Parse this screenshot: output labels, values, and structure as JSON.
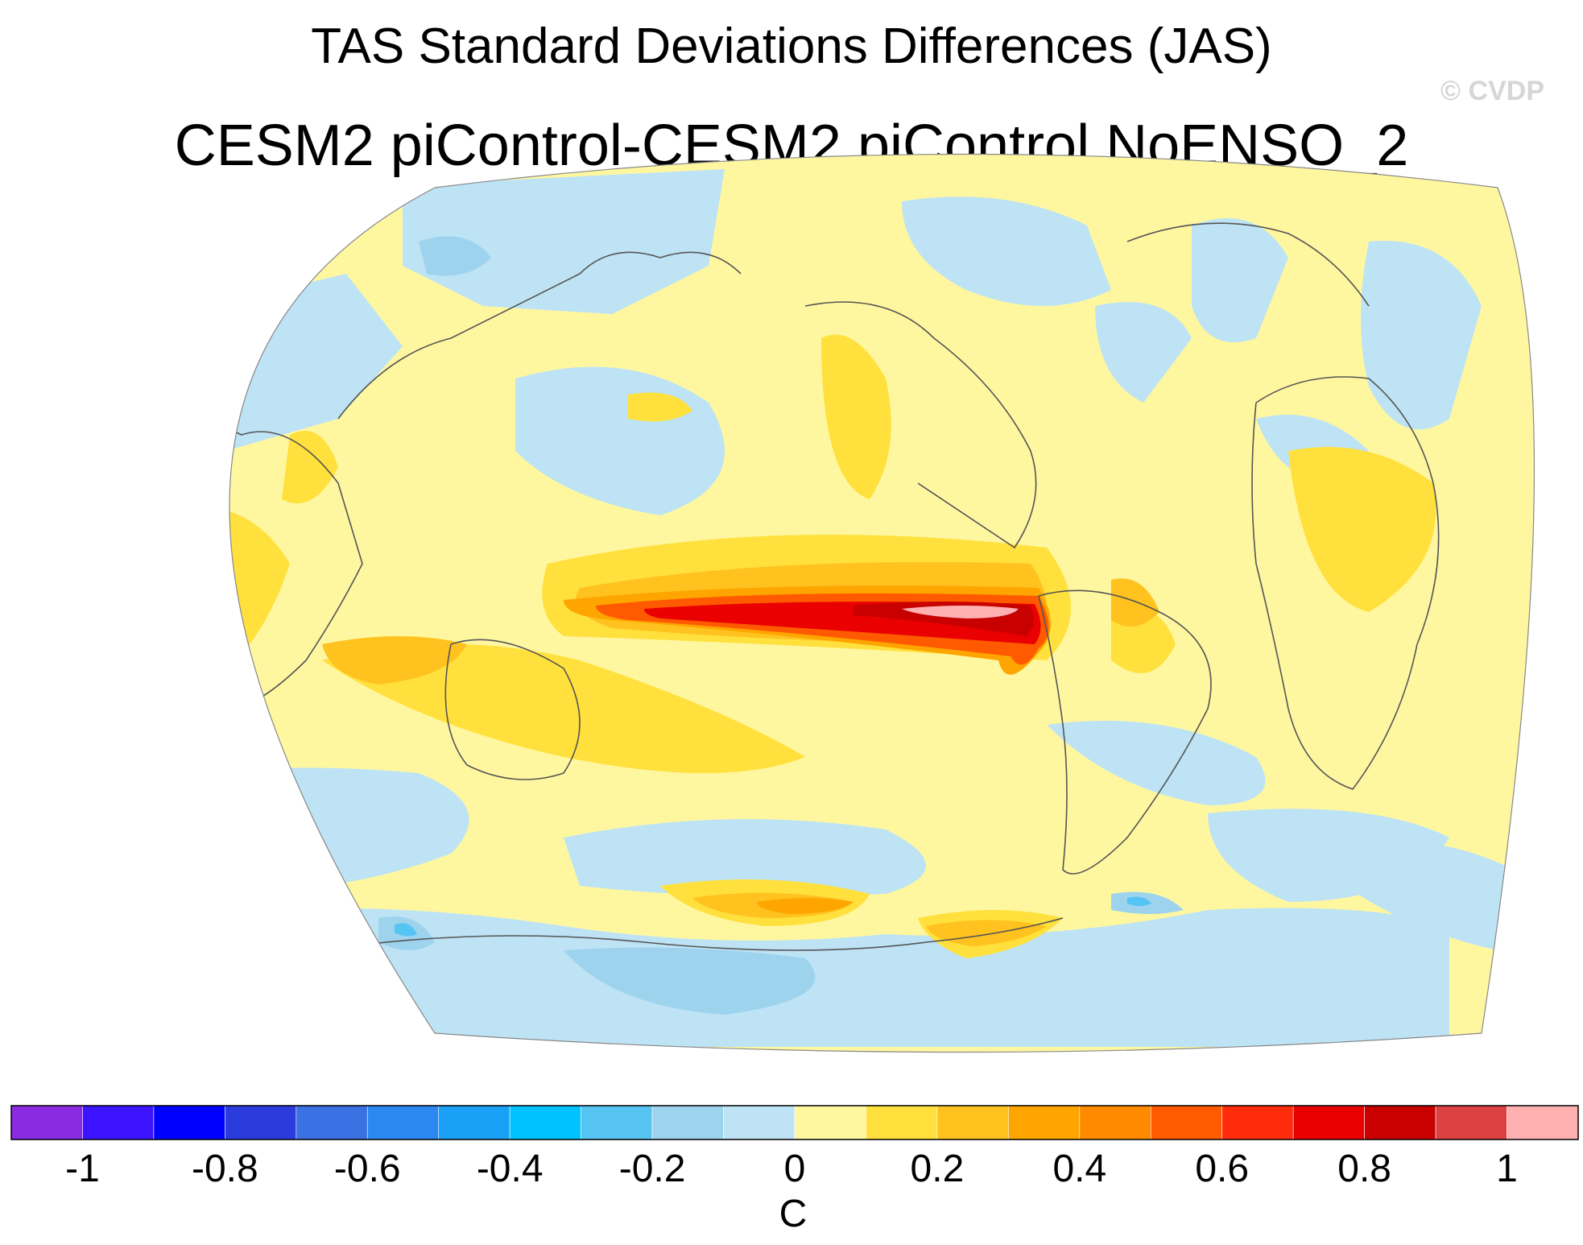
{
  "title": "TAS Standard Deviations Differences (JAS)",
  "subtitle": "CESM2 piControl-CESM2 piControl NoENSO_2",
  "watermark": "© CVDP",
  "colorbar": {
    "unit": "C",
    "colors": [
      "#8a2be2",
      "#3c14ff",
      "#0000ff",
      "#2b3bdc",
      "#3b72e3",
      "#2a88f0",
      "#1aa0f5",
      "#00c2ff",
      "#55c4f2",
      "#9ed3ee",
      "#bde3f5",
      "#fff7a0",
      "#ffe03c",
      "#ffc21e",
      "#ffa500",
      "#ff8a00",
      "#ff5a00",
      "#ff2b0a",
      "#ea0000",
      "#c80000",
      "#dc4040",
      "#ffb0b0"
    ],
    "tick_labels": [
      "-1",
      "-0.8",
      "-0.6",
      "-0.4",
      "-0.2",
      "0",
      "0.2",
      "0.4",
      "0.6",
      "0.8",
      "1"
    ],
    "tick_values": [
      -1,
      -0.8,
      -0.6,
      -0.4,
      -0.2,
      0,
      0.2,
      0.4,
      0.6,
      0.8,
      1
    ]
  }
}
